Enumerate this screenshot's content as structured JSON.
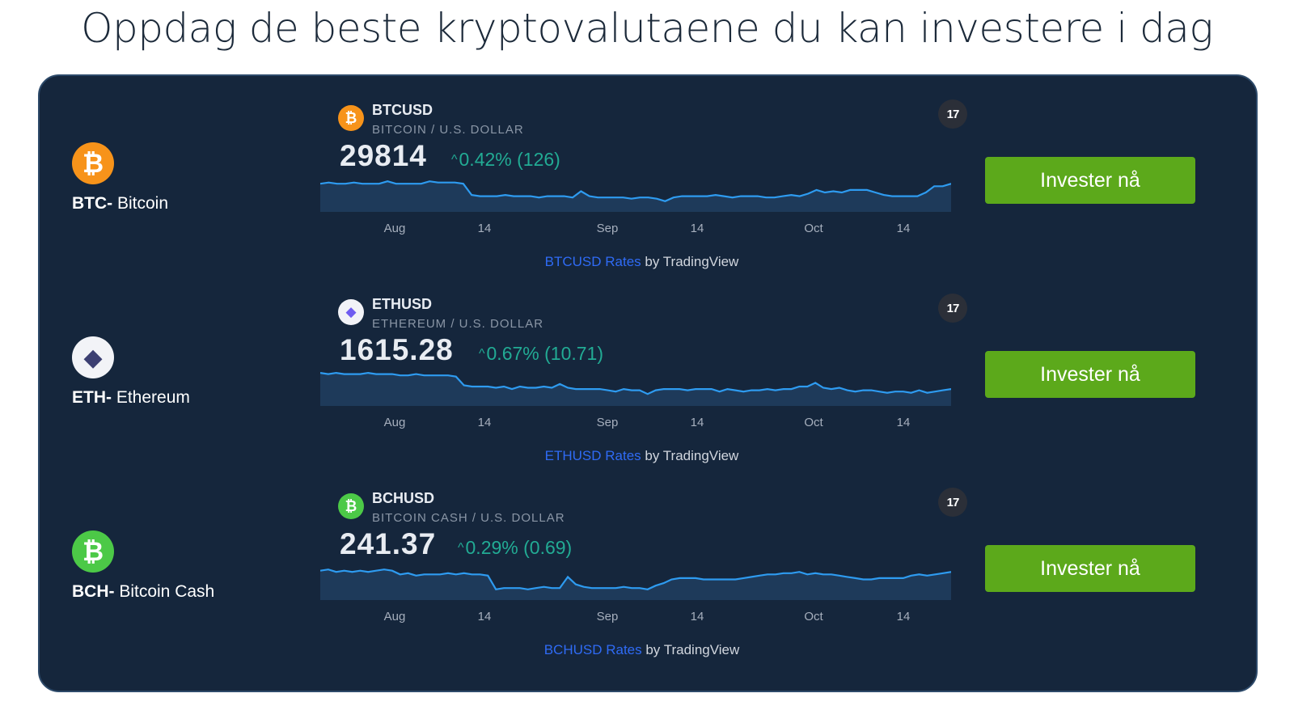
{
  "heading": "Oppdag de beste kryptovalutaene du kan investere i dag",
  "rows": [
    {
      "coin_symbol": "BTC-",
      "coin_name": " Bitcoin",
      "logo_glyph": "₿",
      "logo_color": "#f7931a",
      "widget": {
        "symbol": "BTCUSD",
        "description": "BITCOIN / U.S. DOLLAR",
        "price": "29814",
        "change_arrow": "^",
        "change": "0.42% (126)",
        "tv_logo": "17",
        "ticks": [
          "Aug",
          "14",
          "Sep",
          "14",
          "Oct",
          "14"
        ],
        "credit_link": "BTCUSD Rates",
        "credit_suffix": " by TradingView",
        "series": [
          40,
          41,
          40,
          40,
          41,
          40,
          40,
          40,
          42,
          40,
          40,
          40,
          40,
          42,
          41,
          41,
          41,
          40,
          31,
          30,
          30,
          30,
          31,
          30,
          30,
          30,
          29,
          30,
          30,
          30,
          29,
          34,
          30,
          29,
          29,
          29,
          29,
          28,
          29,
          29,
          28,
          26,
          29,
          30,
          30,
          30,
          30,
          31,
          30,
          29,
          30,
          30,
          30,
          29,
          29,
          30,
          31,
          30,
          32,
          35,
          33,
          34,
          33,
          35,
          35,
          35,
          33,
          31,
          30,
          30,
          30,
          30,
          33,
          38,
          38,
          40
        ]
      },
      "button_label": "Invester nå"
    },
    {
      "coin_symbol": "ETH-",
      "coin_name": " Ethereum",
      "logo_glyph": "◆",
      "logo_color": "#f2f3f7",
      "widget": {
        "symbol": "ETHUSD",
        "description": "ETHEREUM / U.S. DOLLAR",
        "price": "1615.28",
        "change_arrow": "^",
        "change": "0.67% (10.71)",
        "tv_logo": "17",
        "ticks": [
          "Aug",
          "14",
          "Sep",
          "14",
          "Oct",
          "14"
        ],
        "credit_link": "ETHUSD Rates",
        "credit_suffix": " by TradingView",
        "series": [
          44,
          43,
          44,
          43,
          43,
          43,
          44,
          43,
          43,
          43,
          42,
          42,
          43,
          42,
          42,
          42,
          42,
          41,
          34,
          33,
          33,
          33,
          32,
          33,
          31,
          33,
          32,
          32,
          33,
          32,
          35,
          32,
          31,
          31,
          31,
          31,
          30,
          29,
          31,
          30,
          30,
          27,
          30,
          31,
          31,
          31,
          30,
          31,
          31,
          31,
          29,
          31,
          30,
          29,
          30,
          30,
          31,
          30,
          31,
          31,
          33,
          33,
          36,
          32,
          31,
          32,
          30,
          29,
          30,
          30,
          29,
          28,
          29,
          29,
          28,
          30,
          28,
          29,
          30,
          31
        ]
      },
      "button_label": "Invester nå"
    },
    {
      "coin_symbol": "BCH-",
      "coin_name": " Bitcoin Cash",
      "logo_glyph": "₿",
      "logo_color": "#4cc947",
      "widget": {
        "symbol": "BCHUSD",
        "description": "BITCOIN CASH / U.S. DOLLAR",
        "price": "241.37",
        "change_arrow": "^",
        "change": "0.29% (0.69)",
        "tv_logo": "17",
        "ticks": [
          "Aug",
          "14",
          "Sep",
          "14",
          "Oct",
          "14"
        ],
        "credit_link": "BCHUSD Rates",
        "credit_suffix": " by TradingView",
        "series": [
          41,
          42,
          40,
          41,
          40,
          41,
          40,
          41,
          42,
          41,
          38,
          39,
          37,
          38,
          38,
          38,
          39,
          38,
          39,
          38,
          38,
          37,
          26,
          27,
          27,
          27,
          26,
          27,
          28,
          27,
          27,
          36,
          30,
          28,
          27,
          27,
          27,
          27,
          28,
          27,
          27,
          26,
          29,
          31,
          34,
          35,
          35,
          35,
          34,
          34,
          34,
          34,
          34,
          35,
          36,
          37,
          38,
          38,
          39,
          39,
          40,
          38,
          39,
          38,
          38,
          37,
          36,
          35,
          34,
          34,
          35,
          35,
          35,
          35,
          37,
          38,
          37,
          38,
          39,
          40
        ]
      },
      "button_label": "Invester nå"
    }
  ]
}
